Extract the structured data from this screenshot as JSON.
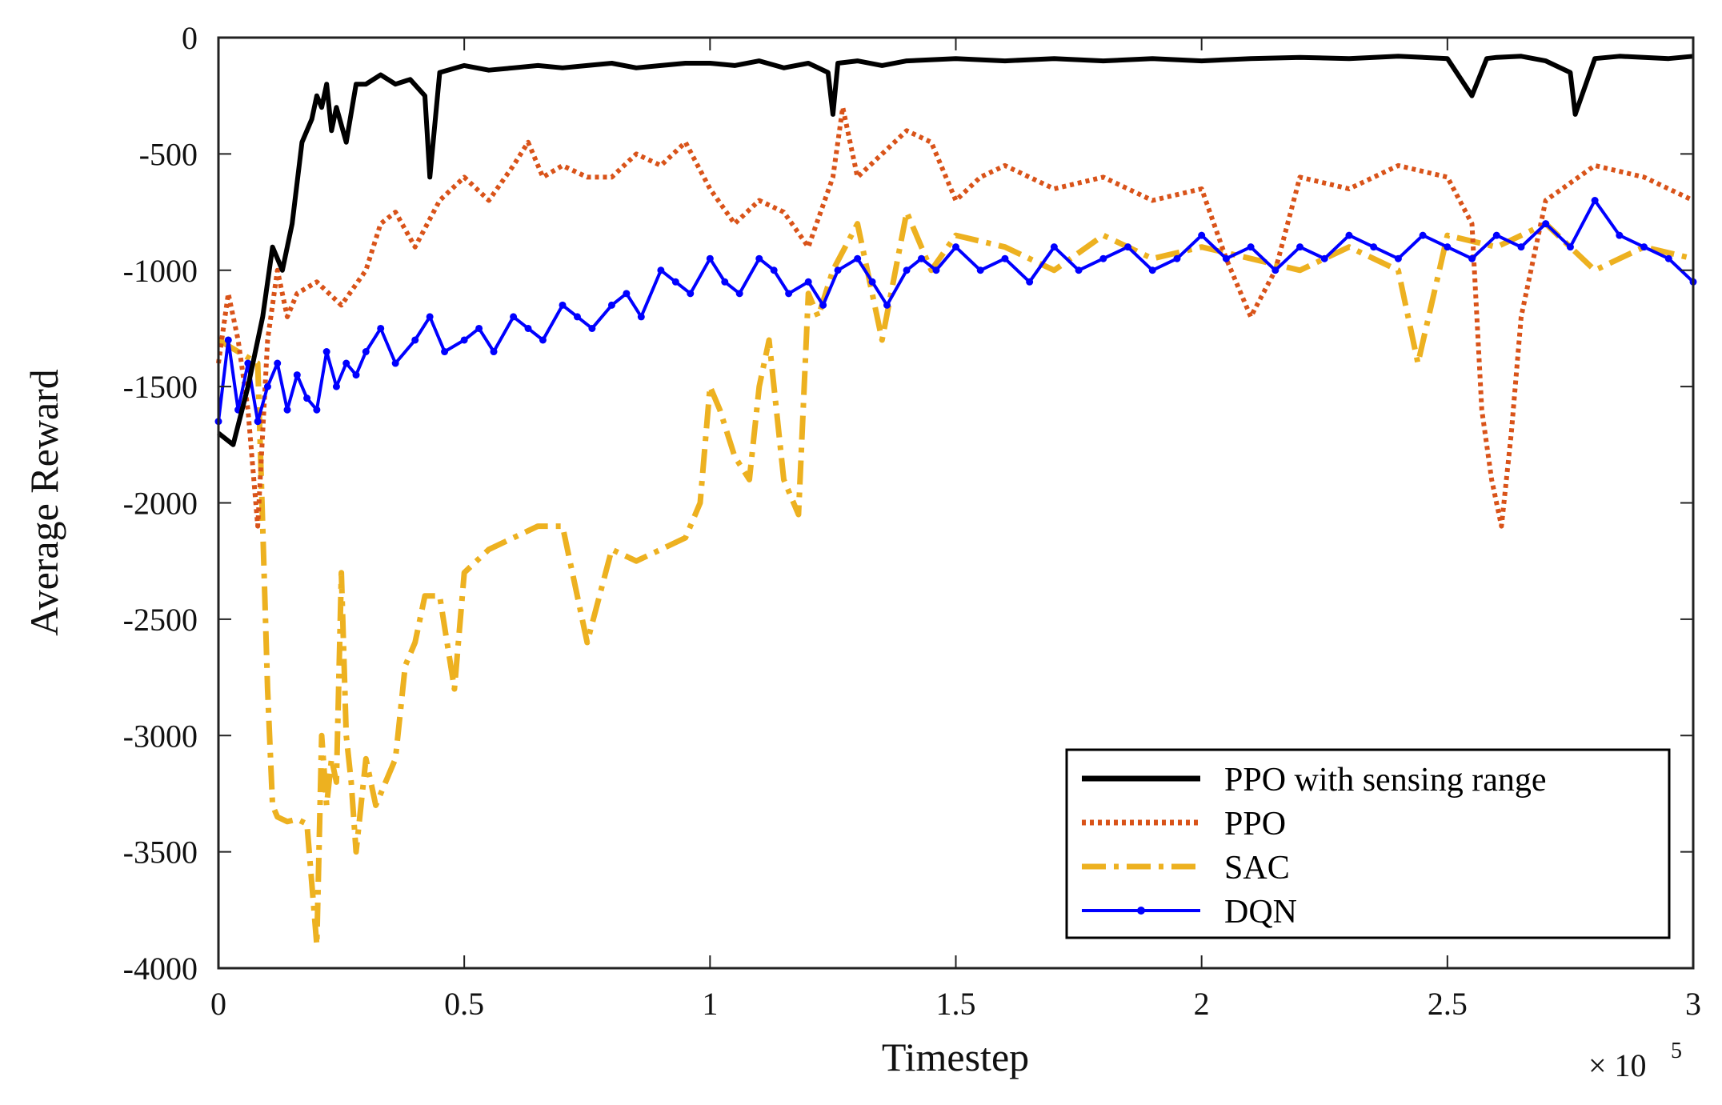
{
  "chart_data": {
    "type": "line",
    "title": "",
    "xlabel": "Timestep",
    "ylabel": "Average Reward",
    "x_multiplier_label": "× 10",
    "x_multiplier_exp": "5",
    "xlim": [
      0,
      3
    ],
    "ylim": [
      -4000,
      0
    ],
    "xticks": [
      0,
      0.5,
      1,
      1.5,
      2,
      2.5,
      3
    ],
    "xtick_labels": [
      "0",
      "0.5",
      "1",
      "1.5",
      "2",
      "2.5",
      "3"
    ],
    "yticks": [
      0,
      -500,
      -1000,
      -1500,
      -2000,
      -2500,
      -3000,
      -3500,
      -4000
    ],
    "ytick_labels": [
      "0",
      "-500",
      "-1000",
      "-1500",
      "-2000",
      "-2500",
      "-3000",
      "-3500",
      "-4000"
    ],
    "legend_position": "bottom-right",
    "series": [
      {
        "name": "PPO with sensing range",
        "color": "#000000",
        "style": "solid",
        "x": [
          0,
          0.03,
          0.06,
          0.09,
          0.11,
          0.13,
          0.15,
          0.17,
          0.19,
          0.2,
          0.21,
          0.22,
          0.23,
          0.24,
          0.26,
          0.28,
          0.3,
          0.33,
          0.36,
          0.39,
          0.42,
          0.43,
          0.45,
          0.5,
          0.55,
          0.6,
          0.65,
          0.7,
          0.75,
          0.8,
          0.85,
          0.9,
          0.95,
          1.0,
          1.05,
          1.1,
          1.15,
          1.2,
          1.24,
          1.25,
          1.26,
          1.3,
          1.35,
          1.4,
          1.5,
          1.6,
          1.7,
          1.8,
          1.9,
          2.0,
          2.1,
          2.2,
          2.3,
          2.4,
          2.5,
          2.55,
          2.58,
          2.6,
          2.65,
          2.7,
          2.75,
          2.76,
          2.8,
          2.85,
          2.9,
          2.95,
          3.0
        ],
        "y": [
          -1700,
          -1750,
          -1500,
          -1200,
          -900,
          -1000,
          -800,
          -450,
          -350,
          -250,
          -300,
          -200,
          -400,
          -300,
          -450,
          -200,
          -200,
          -160,
          -200,
          -180,
          -250,
          -600,
          -150,
          -120,
          -140,
          -130,
          -120,
          -130,
          -120,
          -110,
          -130,
          -120,
          -110,
          -110,
          -120,
          -100,
          -130,
          -110,
          -150,
          -330,
          -110,
          -100,
          -120,
          -100,
          -90,
          -100,
          -90,
          -100,
          -90,
          -100,
          -90,
          -85,
          -90,
          -80,
          -90,
          -250,
          -90,
          -85,
          -80,
          -100,
          -150,
          -330,
          -90,
          -80,
          -85,
          -90,
          -80
        ]
      },
      {
        "name": "PPO",
        "color": "#d95319",
        "style": "dotted",
        "x": [
          0,
          0.02,
          0.04,
          0.06,
          0.08,
          0.1,
          0.12,
          0.14,
          0.16,
          0.2,
          0.25,
          0.3,
          0.33,
          0.36,
          0.4,
          0.45,
          0.5,
          0.55,
          0.6,
          0.63,
          0.66,
          0.7,
          0.75,
          0.8,
          0.85,
          0.9,
          0.95,
          1.0,
          1.05,
          1.1,
          1.15,
          1.2,
          1.25,
          1.27,
          1.3,
          1.35,
          1.4,
          1.45,
          1.5,
          1.55,
          1.6,
          1.7,
          1.8,
          1.9,
          2.0,
          2.05,
          2.1,
          2.15,
          2.2,
          2.3,
          2.4,
          2.5,
          2.55,
          2.57,
          2.59,
          2.61,
          2.63,
          2.65,
          2.7,
          2.8,
          2.9,
          3.0
        ],
        "y": [
          -1400,
          -1100,
          -1300,
          -1600,
          -2100,
          -1300,
          -1000,
          -1200,
          -1100,
          -1050,
          -1150,
          -1000,
          -800,
          -750,
          -900,
          -700,
          -600,
          -700,
          -550,
          -450,
          -600,
          -550,
          -600,
          -600,
          -500,
          -550,
          -450,
          -650,
          -800,
          -700,
          -750,
          -900,
          -600,
          -300,
          -600,
          -500,
          -400,
          -450,
          -700,
          -600,
          -550,
          -650,
          -600,
          -700,
          -650,
          -950,
          -1200,
          -1000,
          -600,
          -650,
          -550,
          -600,
          -800,
          -1600,
          -1900,
          -2100,
          -1700,
          -1200,
          -700,
          -550,
          -600,
          -700
        ]
      },
      {
        "name": "SAC",
        "color": "#edb120",
        "style": "dash-dot",
        "x": [
          0,
          0.04,
          0.08,
          0.09,
          0.1,
          0.11,
          0.12,
          0.14,
          0.16,
          0.18,
          0.2,
          0.21,
          0.22,
          0.23,
          0.24,
          0.25,
          0.26,
          0.27,
          0.28,
          0.3,
          0.32,
          0.34,
          0.36,
          0.38,
          0.4,
          0.42,
          0.45,
          0.48,
          0.5,
          0.55,
          0.6,
          0.65,
          0.7,
          0.75,
          0.8,
          0.85,
          0.9,
          0.95,
          0.98,
          1.0,
          1.02,
          1.05,
          1.08,
          1.1,
          1.12,
          1.15,
          1.18,
          1.2,
          1.22,
          1.25,
          1.3,
          1.35,
          1.4,
          1.45,
          1.5,
          1.6,
          1.7,
          1.8,
          1.9,
          2.0,
          2.1,
          2.2,
          2.3,
          2.4,
          2.44,
          2.5,
          2.6,
          2.7,
          2.8,
          2.9,
          3.0
        ],
        "y": [
          -1300,
          -1350,
          -1400,
          -2100,
          -2800,
          -3300,
          -3350,
          -3370,
          -3360,
          -3380,
          -3900,
          -3000,
          -3300,
          -3100,
          -3200,
          -2300,
          -3000,
          -3200,
          -3500,
          -3100,
          -3300,
          -3200,
          -3100,
          -2700,
          -2600,
          -2400,
          -2400,
          -2800,
          -2300,
          -2200,
          -2150,
          -2100,
          -2100,
          -2600,
          -2200,
          -2250,
          -2200,
          -2150,
          -2000,
          -1500,
          -1600,
          -1800,
          -1900,
          -1500,
          -1300,
          -1900,
          -2050,
          -1100,
          -1200,
          -1000,
          -800,
          -1300,
          -750,
          -1000,
          -850,
          -900,
          -1000,
          -850,
          -950,
          -900,
          -950,
          -1000,
          -900,
          -1000,
          -1400,
          -850,
          -900,
          -800,
          -1000,
          -900,
          -950
        ]
      },
      {
        "name": "DQN",
        "color": "#0000ff",
        "style": "solid-dotmarkers",
        "x": [
          0,
          0.02,
          0.04,
          0.06,
          0.08,
          0.1,
          0.12,
          0.14,
          0.16,
          0.18,
          0.2,
          0.22,
          0.24,
          0.26,
          0.28,
          0.3,
          0.33,
          0.36,
          0.4,
          0.43,
          0.46,
          0.5,
          0.53,
          0.56,
          0.6,
          0.63,
          0.66,
          0.7,
          0.73,
          0.76,
          0.8,
          0.83,
          0.86,
          0.9,
          0.93,
          0.96,
          1.0,
          1.03,
          1.06,
          1.1,
          1.13,
          1.16,
          1.2,
          1.23,
          1.26,
          1.3,
          1.33,
          1.36,
          1.4,
          1.43,
          1.46,
          1.5,
          1.55,
          1.6,
          1.65,
          1.7,
          1.75,
          1.8,
          1.85,
          1.9,
          1.95,
          2.0,
          2.05,
          2.1,
          2.15,
          2.2,
          2.25,
          2.3,
          2.35,
          2.4,
          2.45,
          2.5,
          2.55,
          2.6,
          2.65,
          2.7,
          2.75,
          2.8,
          2.85,
          2.9,
          2.95,
          3.0
        ],
        "y": [
          -1650,
          -1300,
          -1600,
          -1400,
          -1650,
          -1500,
          -1400,
          -1600,
          -1450,
          -1550,
          -1600,
          -1350,
          -1500,
          -1400,
          -1450,
          -1350,
          -1250,
          -1400,
          -1300,
          -1200,
          -1350,
          -1300,
          -1250,
          -1350,
          -1200,
          -1250,
          -1300,
          -1150,
          -1200,
          -1250,
          -1150,
          -1100,
          -1200,
          -1000,
          -1050,
          -1100,
          -950,
          -1050,
          -1100,
          -950,
          -1000,
          -1100,
          -1050,
          -1150,
          -1000,
          -950,
          -1050,
          -1150,
          -1000,
          -950,
          -1000,
          -900,
          -1000,
          -950,
          -1050,
          -900,
          -1000,
          -950,
          -900,
          -1000,
          -950,
          -850,
          -950,
          -900,
          -1000,
          -900,
          -950,
          -850,
          -900,
          -950,
          -850,
          -900,
          -950,
          -850,
          -900,
          -800,
          -900,
          -700,
          -850,
          -900,
          -950,
          -1050
        ]
      }
    ]
  }
}
